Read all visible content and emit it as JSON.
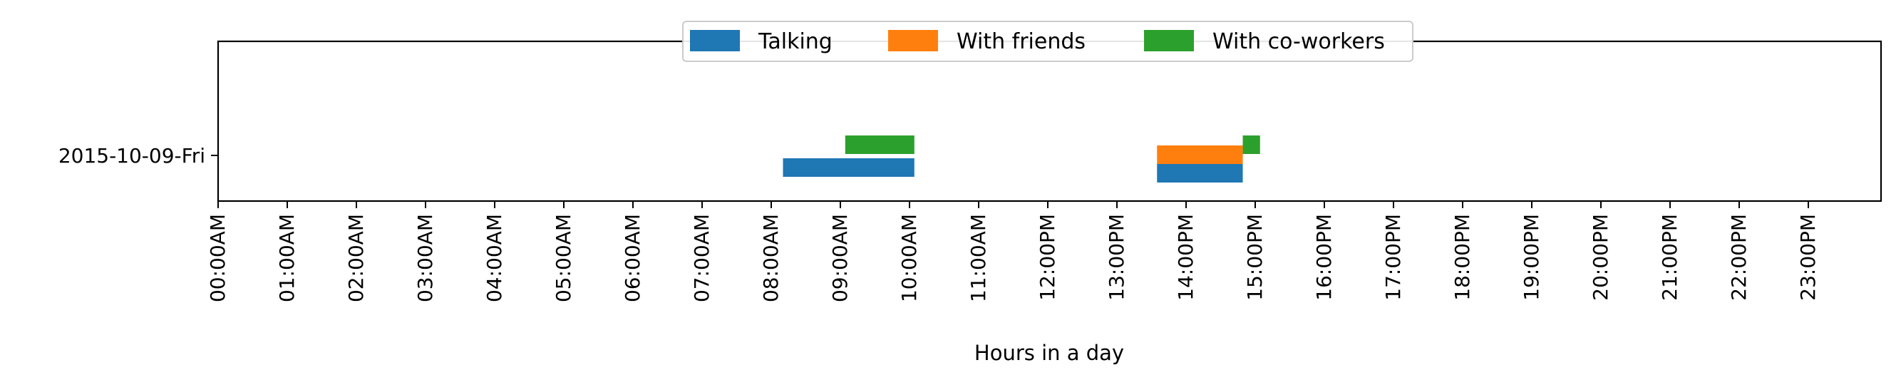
{
  "chart_data": {
    "type": "bar",
    "orientation": "horizontal",
    "xlabel": "Hours in a day",
    "ylabel": "",
    "xlim": [
      0,
      24
    ],
    "x_ticks": [
      {
        "value": 0,
        "label": "00:00AM"
      },
      {
        "value": 1,
        "label": "01:00AM"
      },
      {
        "value": 2,
        "label": "02:00AM"
      },
      {
        "value": 3,
        "label": "03:00AM"
      },
      {
        "value": 4,
        "label": "04:00AM"
      },
      {
        "value": 5,
        "label": "05:00AM"
      },
      {
        "value": 6,
        "label": "06:00AM"
      },
      {
        "value": 7,
        "label": "07:00AM"
      },
      {
        "value": 8,
        "label": "08:00AM"
      },
      {
        "value": 9,
        "label": "09:00AM"
      },
      {
        "value": 10,
        "label": "10:00AM"
      },
      {
        "value": 11,
        "label": "11:00AM"
      },
      {
        "value": 12,
        "label": "12:00PM"
      },
      {
        "value": 13,
        "label": "13:00PM"
      },
      {
        "value": 14,
        "label": "14:00PM"
      },
      {
        "value": 15,
        "label": "15:00PM"
      },
      {
        "value": 16,
        "label": "16:00PM"
      },
      {
        "value": 17,
        "label": "17:00PM"
      },
      {
        "value": 18,
        "label": "18:00PM"
      },
      {
        "value": 19,
        "label": "19:00PM"
      },
      {
        "value": 20,
        "label": "20:00PM"
      },
      {
        "value": 21,
        "label": "21:00PM"
      },
      {
        "value": 22,
        "label": "22:00PM"
      },
      {
        "value": 23,
        "label": "23:00PM"
      }
    ],
    "categories": [
      "2015-10-09-Fri"
    ],
    "legend_position": "top-center",
    "grid": false,
    "series": [
      {
        "name": "Talking",
        "color": "#1f77b4",
        "intervals": [
          {
            "category": "2015-10-09-Fri",
            "start": 8.17,
            "end": 10.07
          },
          {
            "category": "2015-10-09-Fri",
            "start": 13.58,
            "end": 14.82
          }
        ]
      },
      {
        "name": "With friends",
        "color": "#ff7f0e",
        "intervals": [
          {
            "category": "2015-10-09-Fri",
            "start": 13.58,
            "end": 14.82
          }
        ]
      },
      {
        "name": "With co-workers",
        "color": "#2ca02c",
        "intervals": [
          {
            "category": "2015-10-09-Fri",
            "start": 9.07,
            "end": 10.07
          },
          {
            "category": "2015-10-09-Fri",
            "start": 14.82,
            "end": 15.07
          }
        ]
      }
    ]
  }
}
